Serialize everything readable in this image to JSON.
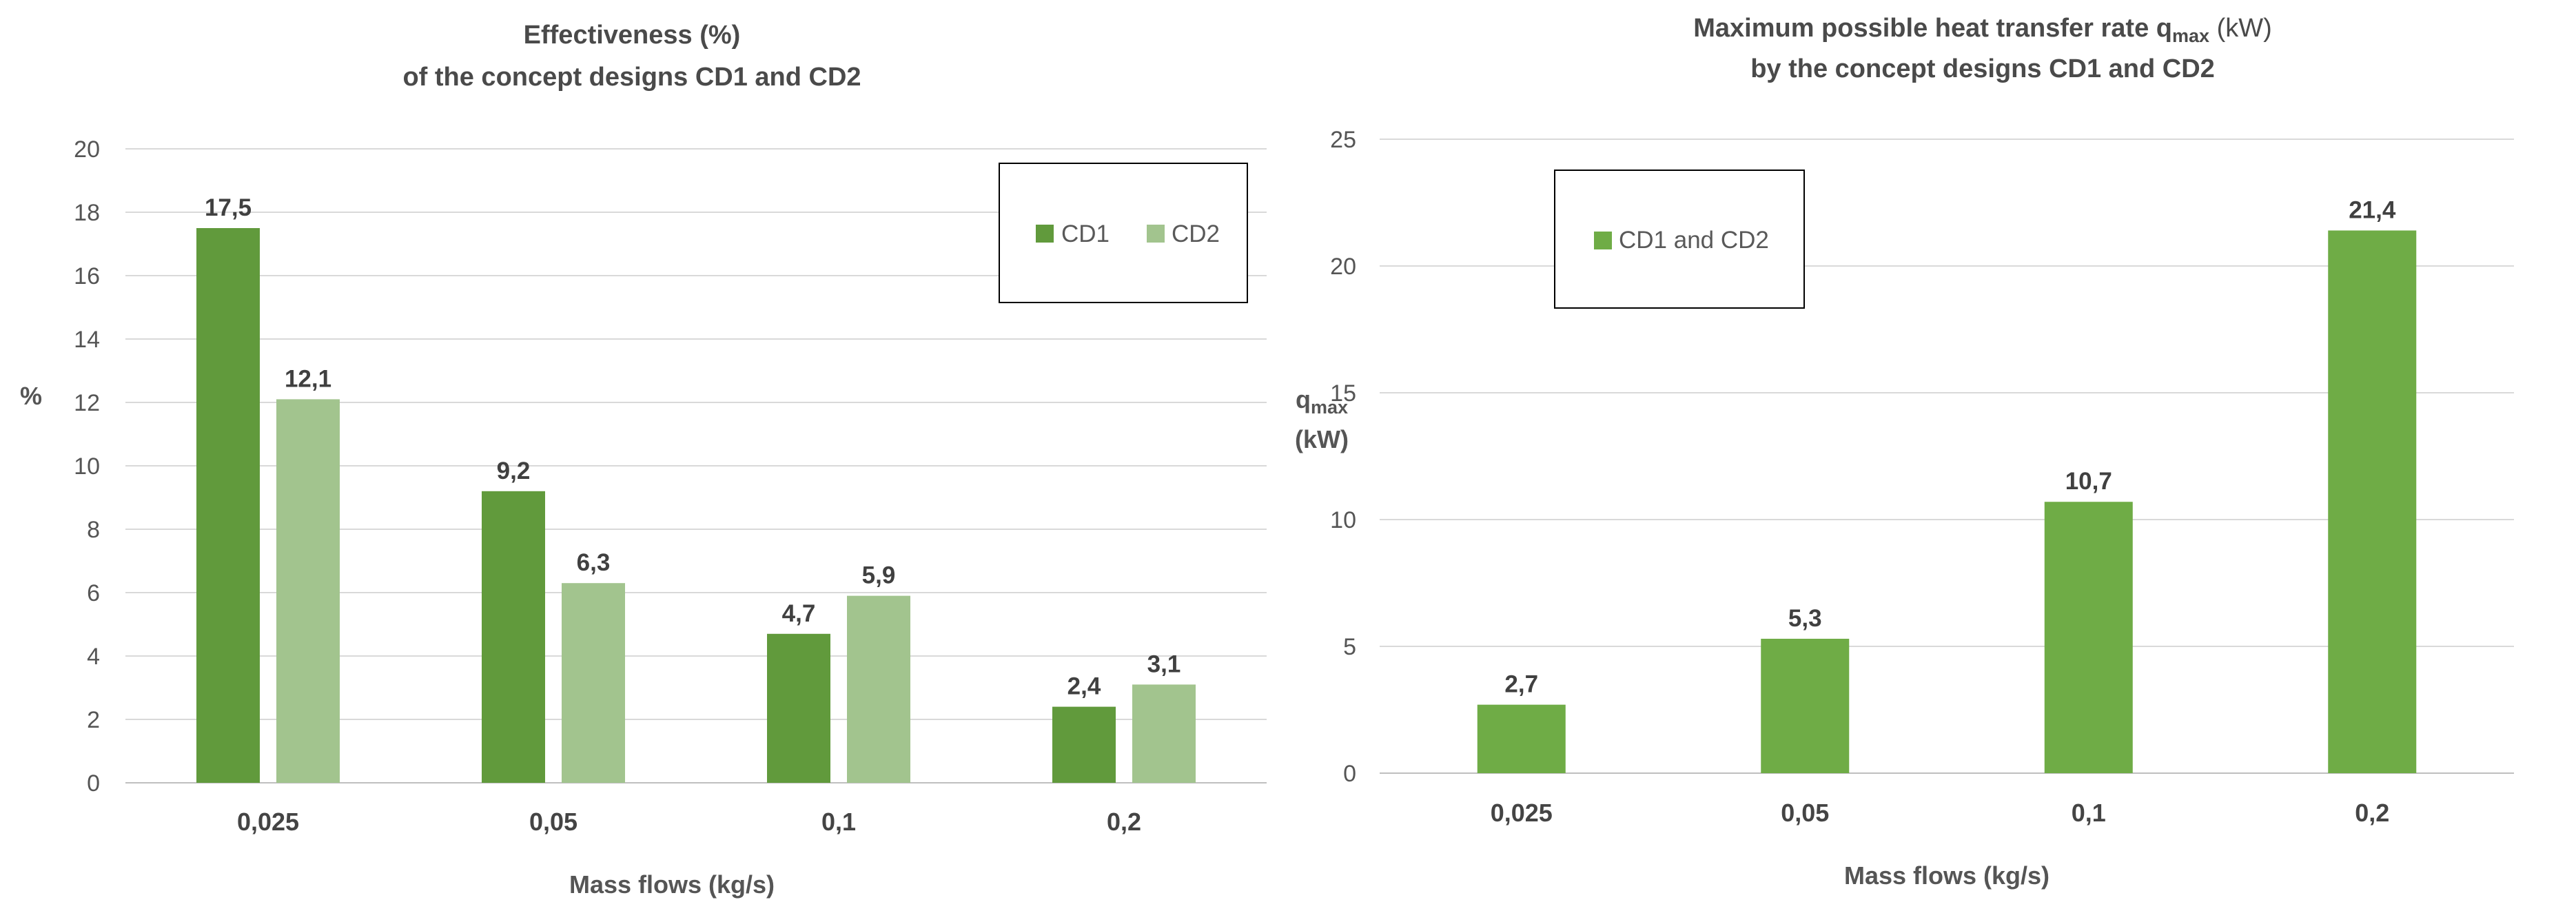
{
  "chart_data": [
    {
      "type": "bar",
      "title": [
        "Effectiveness (%)",
        "of the concept designs CD1 and CD2"
      ],
      "xlabel": "Mass flows (kg/s)",
      "ylabel": "%",
      "ylim": [
        0,
        20
      ],
      "yticks": [
        "0",
        "2",
        "4",
        "6",
        "8",
        "10",
        "12",
        "14",
        "16",
        "18",
        "20"
      ],
      "categories": [
        "0,025",
        "0,05",
        "0,1",
        "0,2"
      ],
      "series": [
        {
          "name": "CD1",
          "color": "#619a3c",
          "values": [
            17.5,
            9.2,
            4.7,
            2.4
          ],
          "labels": [
            "17,5",
            "9,2",
            "4,7",
            "2,4"
          ]
        },
        {
          "name": "CD2",
          "color": "#a2c48e",
          "values": [
            12.1,
            6.3,
            5.9,
            3.1
          ],
          "labels": [
            "12,1",
            "6,3",
            "5,9",
            "3,1"
          ]
        }
      ],
      "legend": "top-right",
      "grid": true
    },
    {
      "type": "bar",
      "title": {
        "line1_pre": "Maximum possible heat transfer rate q",
        "line1_sub": "max",
        "line1_post": " (kW)",
        "line2": "by the concept designs CD1 and CD2"
      },
      "xlabel": "Mass flows (kg/s)",
      "ylabel": {
        "main": "q",
        "sub": "max",
        "unit": "(kW)"
      },
      "ylim": [
        0,
        25
      ],
      "yticks": [
        "0",
        "5",
        "10",
        "15",
        "20",
        "25"
      ],
      "categories": [
        "0,025",
        "0,05",
        "0,1",
        "0,2"
      ],
      "series": [
        {
          "name": "CD1 and CD2",
          "color": "#6fac46",
          "values": [
            2.7,
            5.3,
            10.7,
            21.4
          ],
          "labels": [
            "2,7",
            "5,3",
            "10,7",
            "21,4"
          ]
        }
      ],
      "legend": "top-left",
      "grid": true
    }
  ]
}
